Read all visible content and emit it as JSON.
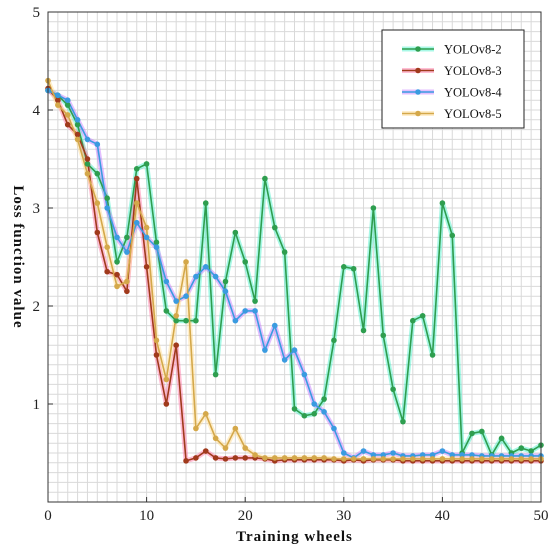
{
  "chart_data": {
    "type": "line",
    "xlabel": "Training wheels",
    "ylabel": "Loss function value",
    "xlim": [
      0,
      50
    ],
    "ylim": [
      0,
      5
    ],
    "x_ticks": [
      "0",
      "10",
      "20",
      "30",
      "40",
      "50"
    ],
    "y_ticks": [
      "1",
      "2",
      "3",
      "4",
      "5"
    ],
    "grid": true,
    "legend_position": "top-right",
    "x": [
      0,
      1,
      2,
      3,
      4,
      5,
      6,
      7,
      8,
      9,
      10,
      11,
      12,
      13,
      14,
      15,
      16,
      17,
      18,
      19,
      20,
      21,
      22,
      23,
      24,
      25,
      26,
      27,
      28,
      29,
      30,
      31,
      32,
      33,
      34,
      35,
      36,
      37,
      38,
      39,
      40,
      41,
      42,
      43,
      44,
      45,
      46,
      47,
      48,
      49,
      50
    ],
    "series": [
      {
        "name": "YOLOv8-2",
        "color": "#2e9e4f",
        "glow": "#3ff0c8",
        "values": [
          4.2,
          4.15,
          4.05,
          3.85,
          3.45,
          3.35,
          3.1,
          2.45,
          2.7,
          3.4,
          3.45,
          2.65,
          1.95,
          1.85,
          1.85,
          1.85,
          3.05,
          1.3,
          2.25,
          2.75,
          2.45,
          2.05,
          3.3,
          2.8,
          2.55,
          0.95,
          0.88,
          0.9,
          1.05,
          1.65,
          2.4,
          2.38,
          1.75,
          3.0,
          1.7,
          1.15,
          0.82,
          1.85,
          1.9,
          1.5,
          3.05,
          2.72,
          0.5,
          0.7,
          0.72,
          0.48,
          0.65,
          0.5,
          0.55,
          0.52,
          0.58
        ]
      },
      {
        "name": "YOLOv8-3",
        "color": "#a03a1c",
        "glow": "#ff6fa0",
        "values": [
          4.22,
          4.1,
          3.85,
          3.75,
          3.5,
          2.75,
          2.35,
          2.32,
          2.15,
          3.3,
          2.4,
          1.5,
          1.0,
          1.6,
          0.42,
          0.45,
          0.52,
          0.45,
          0.44,
          0.45,
          0.45,
          0.45,
          0.44,
          0.42,
          0.43,
          0.43,
          0.43,
          0.43,
          0.43,
          0.43,
          0.42,
          0.43,
          0.42,
          0.43,
          0.43,
          0.43,
          0.42,
          0.42,
          0.42,
          0.42,
          0.42,
          0.42,
          0.42,
          0.42,
          0.42,
          0.42,
          0.42,
          0.42,
          0.42,
          0.42,
          0.42
        ]
      },
      {
        "name": "YOLOv8-4",
        "color": "#3a9be0",
        "glow": "#c070ff",
        "values": [
          4.2,
          4.15,
          4.1,
          3.9,
          3.7,
          3.65,
          3.0,
          2.7,
          2.55,
          2.85,
          2.7,
          2.6,
          2.25,
          2.05,
          2.1,
          2.3,
          2.4,
          2.3,
          2.15,
          1.85,
          1.95,
          1.95,
          1.55,
          1.8,
          1.45,
          1.55,
          1.3,
          1.0,
          0.92,
          0.75,
          0.5,
          0.45,
          0.52,
          0.48,
          0.48,
          0.5,
          0.47,
          0.47,
          0.48,
          0.48,
          0.52,
          0.48,
          0.48,
          0.48,
          0.47,
          0.47,
          0.47,
          0.47,
          0.47,
          0.47,
          0.47
        ]
      },
      {
        "name": "YOLOv8-5",
        "color": "#d4a84a",
        "glow": "#ffd98a",
        "values": [
          4.3,
          4.05,
          3.95,
          3.7,
          3.35,
          3.05,
          2.6,
          2.2,
          2.25,
          3.05,
          2.8,
          1.65,
          1.25,
          1.9,
          2.45,
          0.75,
          0.9,
          0.65,
          0.55,
          0.75,
          0.55,
          0.48,
          0.45,
          0.45,
          0.45,
          0.45,
          0.45,
          0.45,
          0.45,
          0.44,
          0.44,
          0.44,
          0.44,
          0.44,
          0.44,
          0.44,
          0.44,
          0.44,
          0.44,
          0.44,
          0.44,
          0.44,
          0.44,
          0.44,
          0.44,
          0.44,
          0.44,
          0.44,
          0.44,
          0.44,
          0.44
        ]
      }
    ]
  }
}
